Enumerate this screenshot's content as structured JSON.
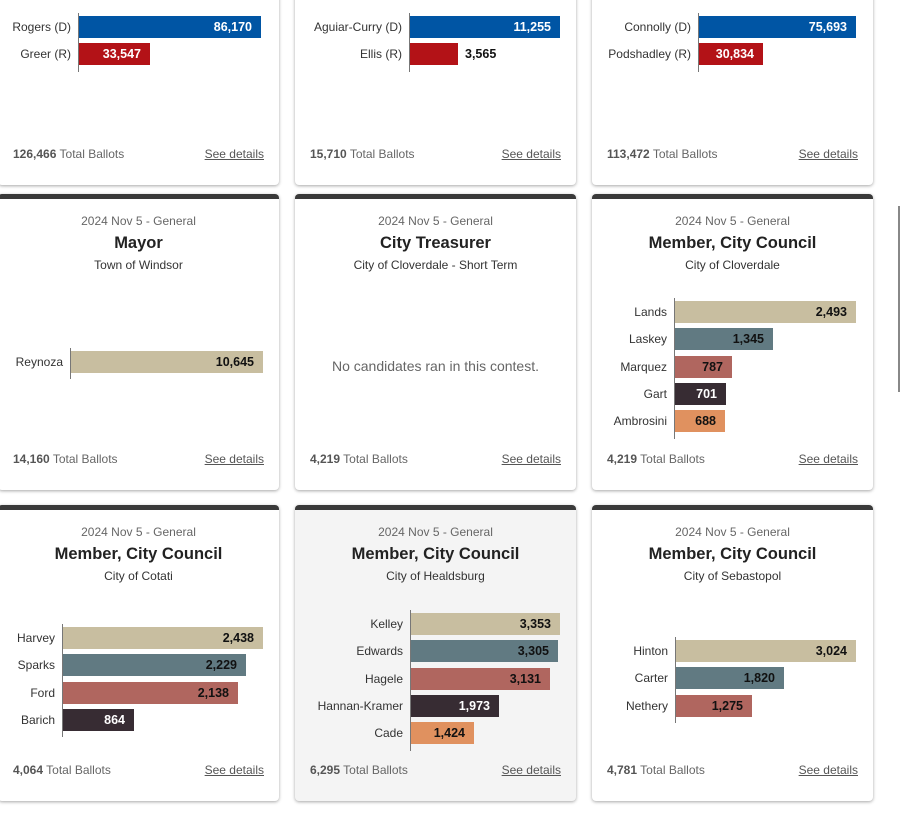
{
  "common": {
    "election_label": "2024 Nov 5 - General",
    "total_suffix": "Total Ballots",
    "details_label": "See details",
    "no_candidates_message": "No candidates ran in this contest."
  },
  "colors": {
    "dem": "#0055a4",
    "rep": "#b31217",
    "c1": "#c8bea0",
    "c2": "#617a82",
    "c3": "#b0665f",
    "c4": "#372c33",
    "c5": "#e0915f",
    "axis": "#777777",
    "header_bar": "#3a3a3a"
  },
  "cards": [
    {
      "date": "",
      "title": "",
      "subtitle": "",
      "total": "126,466",
      "candidates": [
        {
          "name": "Rogers (D)",
          "votes": 86170,
          "label": "86,170",
          "color": "dem"
        },
        {
          "name": "Greer (R)",
          "votes": 33547,
          "label": "33,547",
          "color": "rep"
        }
      ]
    },
    {
      "date": "",
      "title": "",
      "subtitle": "",
      "total": "15,710",
      "candidates": [
        {
          "name": "Aguiar-Curry (D)",
          "votes": 11255,
          "label": "11,255",
          "color": "dem"
        },
        {
          "name": "Ellis (R)",
          "votes": 3565,
          "label": "3,565",
          "color": "rep"
        }
      ]
    },
    {
      "date": "",
      "title": "",
      "subtitle": "",
      "total": "113,472",
      "candidates": [
        {
          "name": "Connolly (D)",
          "votes": 75693,
          "label": "75,693",
          "color": "dem"
        },
        {
          "name": "Podshadley (R)",
          "votes": 30834,
          "label": "30,834",
          "color": "rep"
        }
      ]
    },
    {
      "date": "2024 Nov 5 - General",
      "title": "Mayor",
      "subtitle": "Town of Windsor",
      "total": "14,160",
      "candidates": [
        {
          "name": "Reynoza",
          "votes": 10645,
          "label": "10,645",
          "color": "c1"
        }
      ]
    },
    {
      "date": "2024 Nov 5 - General",
      "title": "City Treasurer",
      "subtitle": "City of Cloverdale - Short Term",
      "total": "4,219",
      "candidates": []
    },
    {
      "date": "2024 Nov 5 - General",
      "title": "Member, City Council",
      "subtitle": "City of Cloverdale",
      "total": "4,219",
      "candidates": [
        {
          "name": "Lands",
          "votes": 2493,
          "label": "2,493",
          "color": "c1"
        },
        {
          "name": "Laskey",
          "votes": 1345,
          "label": "1,345",
          "color": "c2"
        },
        {
          "name": "Marquez",
          "votes": 787,
          "label": "787",
          "color": "c3"
        },
        {
          "name": "Gart",
          "votes": 701,
          "label": "701",
          "color": "c4"
        },
        {
          "name": "Ambrosini",
          "votes": 688,
          "label": "688",
          "color": "c5"
        }
      ]
    },
    {
      "date": "2024 Nov 5 - General",
      "title": "Member, City Council",
      "subtitle": "City of Cotati",
      "total": "4,064",
      "candidates": [
        {
          "name": "Harvey",
          "votes": 2438,
          "label": "2,438",
          "color": "c1"
        },
        {
          "name": "Sparks",
          "votes": 2229,
          "label": "2,229",
          "color": "c2"
        },
        {
          "name": "Ford",
          "votes": 2138,
          "label": "2,138",
          "color": "c3"
        },
        {
          "name": "Barich",
          "votes": 864,
          "label": "864",
          "color": "c4"
        }
      ]
    },
    {
      "date": "2024 Nov 5 - General",
      "title": "Member, City Council",
      "subtitle": "City of Healdsburg",
      "total": "6,295",
      "candidates": [
        {
          "name": "Kelley",
          "votes": 3353,
          "label": "3,353",
          "color": "c1"
        },
        {
          "name": "Edwards",
          "votes": 3305,
          "label": "3,305",
          "color": "c2"
        },
        {
          "name": "Hagele",
          "votes": 3131,
          "label": "3,131",
          "color": "c3"
        },
        {
          "name": "Hannan-Kramer",
          "votes": 1973,
          "label": "1,973",
          "color": "c4"
        },
        {
          "name": "Cade",
          "votes": 1424,
          "label": "1,424",
          "color": "c5"
        }
      ]
    },
    {
      "date": "2024 Nov 5 - General",
      "title": "Member, City Council",
      "subtitle": "City of Sebastopol",
      "total": "4,781",
      "candidates": [
        {
          "name": "Hinton",
          "votes": 3024,
          "label": "3,024",
          "color": "c1"
        },
        {
          "name": "Carter",
          "votes": 1820,
          "label": "1,820",
          "color": "c2"
        },
        {
          "name": "Nethery",
          "votes": 1275,
          "label": "1,275",
          "color": "c3"
        }
      ]
    }
  ],
  "chart_data": [
    {
      "type": "bar",
      "orientation": "horizontal",
      "title": "",
      "categories": [
        "Rogers (D)",
        "Greer (R)"
      ],
      "values": [
        86170,
        33547
      ],
      "total_ballots": 126466
    },
    {
      "type": "bar",
      "orientation": "horizontal",
      "title": "",
      "categories": [
        "Aguiar-Curry (D)",
        "Ellis (R)"
      ],
      "values": [
        11255,
        3565
      ],
      "total_ballots": 15710
    },
    {
      "type": "bar",
      "orientation": "horizontal",
      "title": "",
      "categories": [
        "Connolly (D)",
        "Podshadley (R)"
      ],
      "values": [
        75693,
        30834
      ],
      "total_ballots": 113472
    },
    {
      "type": "bar",
      "orientation": "horizontal",
      "title": "Mayor",
      "subtitle": "Town of Windsor",
      "categories": [
        "Reynoza"
      ],
      "values": [
        10645
      ],
      "total_ballots": 14160
    },
    {
      "type": "bar",
      "orientation": "horizontal",
      "title": "City Treasurer",
      "subtitle": "City of Cloverdale - Short Term",
      "categories": [],
      "values": [],
      "total_ballots": 4219
    },
    {
      "type": "bar",
      "orientation": "horizontal",
      "title": "Member, City Council",
      "subtitle": "City of Cloverdale",
      "categories": [
        "Lands",
        "Laskey",
        "Marquez",
        "Gart",
        "Ambrosini"
      ],
      "values": [
        2493,
        1345,
        787,
        701,
        688
      ],
      "total_ballots": 4219
    },
    {
      "type": "bar",
      "orientation": "horizontal",
      "title": "Member, City Council",
      "subtitle": "City of Cotati",
      "categories": [
        "Harvey",
        "Sparks",
        "Ford",
        "Barich"
      ],
      "values": [
        2438,
        2229,
        2138,
        864
      ],
      "total_ballots": 4064
    },
    {
      "type": "bar",
      "orientation": "horizontal",
      "title": "Member, City Council",
      "subtitle": "City of Healdsburg",
      "categories": [
        "Kelley",
        "Edwards",
        "Hagele",
        "Hannan-Kramer",
        "Cade"
      ],
      "values": [
        3353,
        3305,
        3131,
        1973,
        1424
      ],
      "total_ballots": 6295
    },
    {
      "type": "bar",
      "orientation": "horizontal",
      "title": "Member, City Council",
      "subtitle": "City of Sebastopol",
      "categories": [
        "Hinton",
        "Carter",
        "Nethery"
      ],
      "values": [
        3024,
        1820,
        1275
      ],
      "total_ballots": 4781
    }
  ]
}
